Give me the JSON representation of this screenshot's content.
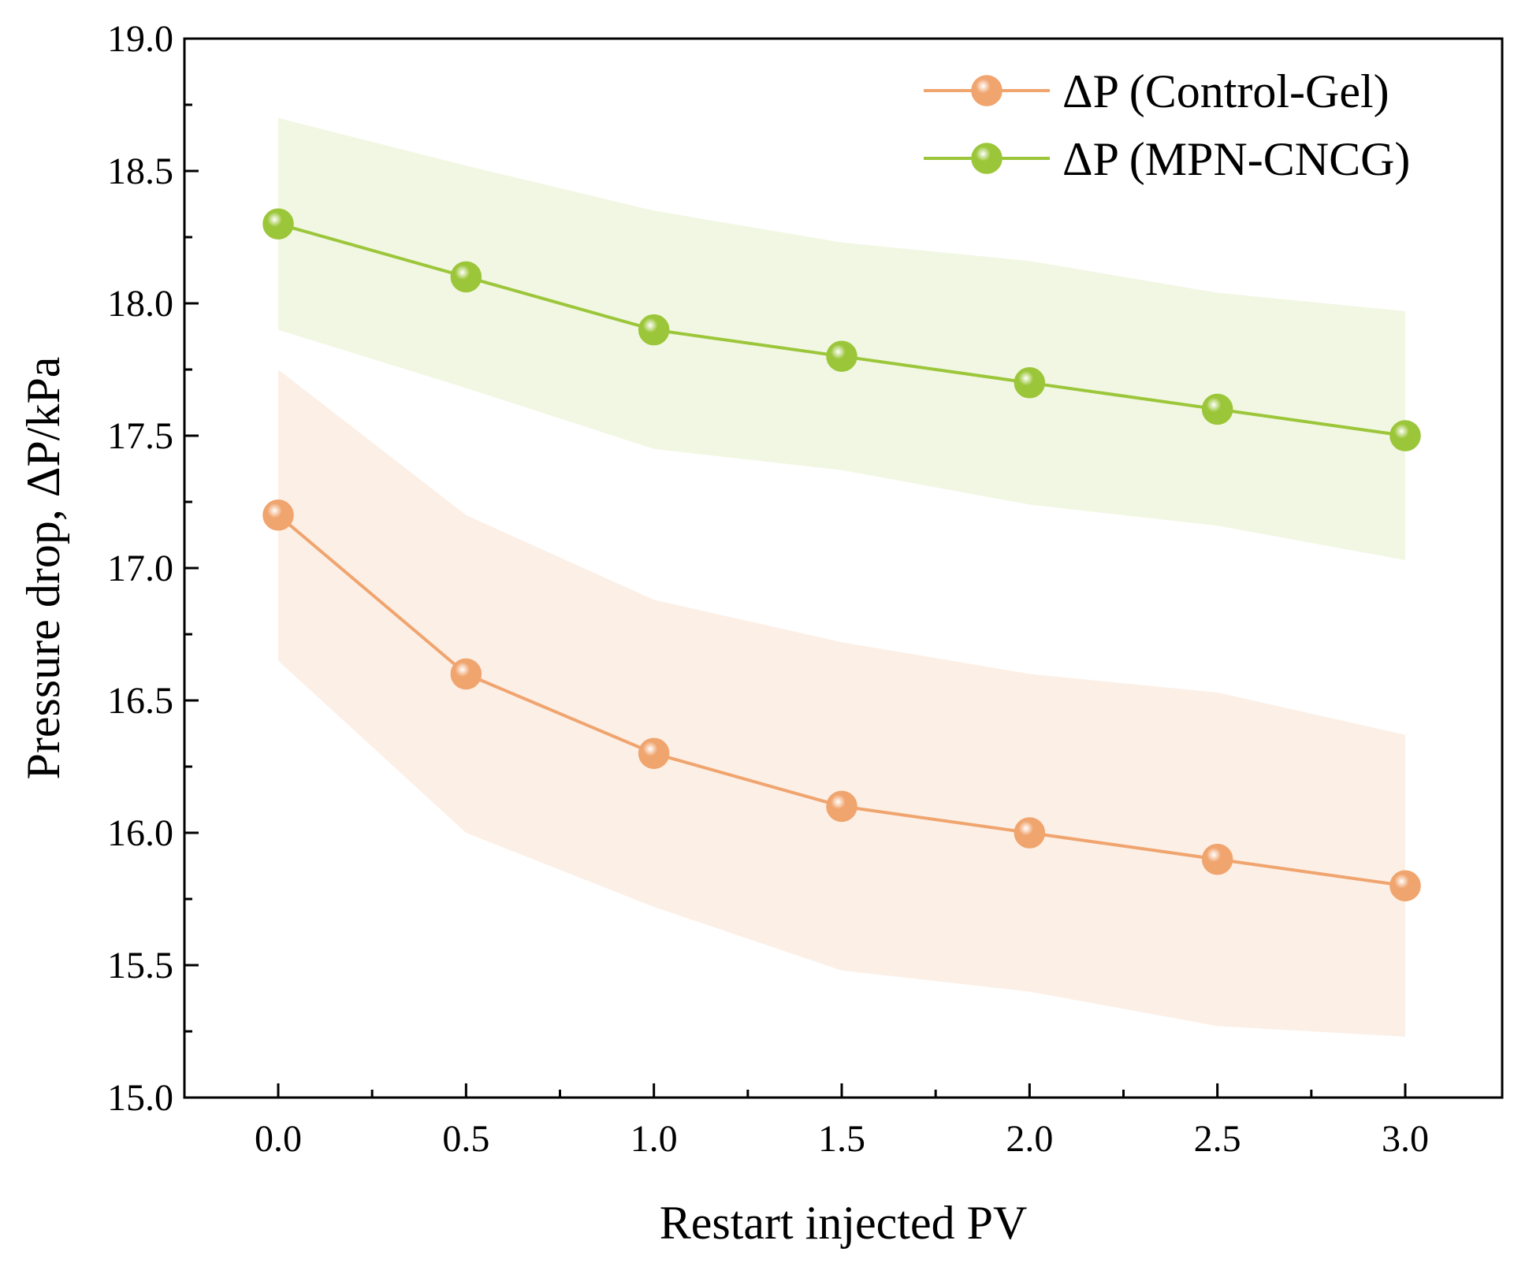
{
  "chart_data": {
    "type": "line",
    "title": "",
    "xlabel": "Restart injected PV",
    "ylabel": "Pressure drop, ΔP/kPa",
    "xlim": [
      -0.25,
      3.25
    ],
    "ylim": [
      15.0,
      19.0
    ],
    "x": [
      0.0,
      0.5,
      1.0,
      1.5,
      2.0,
      2.5,
      3.0
    ],
    "xticks": [
      "0.0",
      "0.5",
      "1.0",
      "1.5",
      "2.0",
      "2.5",
      "3.0"
    ],
    "yticks": [
      "15.0",
      "15.5",
      "16.0",
      "16.5",
      "17.0",
      "17.5",
      "18.0",
      "18.5",
      "19.0"
    ],
    "legend_position": "top-right",
    "grid": false,
    "series": [
      {
        "name": "ΔP (Control-Gel)",
        "color": "#f0a46e",
        "band_color": "#fcefe6",
        "values": [
          17.2,
          16.6,
          16.3,
          16.1,
          16.0,
          15.9,
          15.8
        ],
        "band_upper": [
          17.75,
          17.2,
          16.88,
          16.72,
          16.6,
          16.53,
          16.37
        ],
        "band_lower": [
          16.65,
          16.0,
          15.72,
          15.48,
          15.4,
          15.27,
          15.23
        ]
      },
      {
        "name": "ΔP (MPN-CNCG)",
        "color": "#9cc63a",
        "band_color": "#f1f7e2",
        "values": [
          18.3,
          18.1,
          17.9,
          17.8,
          17.7,
          17.6,
          17.5
        ],
        "band_upper": [
          18.7,
          18.52,
          18.35,
          18.23,
          18.16,
          18.04,
          17.97
        ],
        "band_lower": [
          17.9,
          17.68,
          17.45,
          17.37,
          17.24,
          17.16,
          17.03
        ]
      }
    ]
  }
}
